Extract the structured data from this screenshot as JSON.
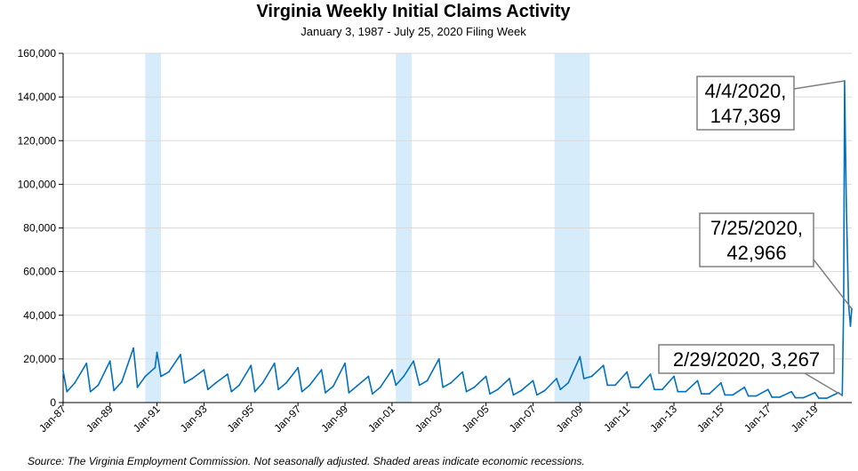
{
  "chart_data": {
    "type": "line",
    "title": "Virginia Weekly Initial Claims Activity",
    "subtitle": "January 3, 1987 - July 25, 2020 Filing Week",
    "source": "Source: The Virginia Employment Commission. Not seasonally adjusted. Shaded areas indicate economic recessions.",
    "xlabel": "",
    "ylabel": "",
    "x_range": [
      "1987-01-03",
      "2020-07-25"
    ],
    "ylim": [
      0,
      160000
    ],
    "y_ticks": [
      0,
      20000,
      40000,
      60000,
      80000,
      100000,
      120000,
      140000,
      160000
    ],
    "y_tick_labels": [
      "0",
      "20,000",
      "40,000",
      "60,000",
      "80,000",
      "100,000",
      "120,000",
      "140,000",
      "160,000"
    ],
    "x_tick_labels": [
      "Jan-87",
      "Jan-89",
      "Jan-91",
      "Jan-93",
      "Jan-95",
      "Jan-97",
      "Jan-99",
      "Jan-01",
      "Jan-03",
      "Jan-05",
      "Jan-07",
      "Jan-09",
      "Jan-11",
      "Jan-13",
      "Jan-15",
      "Jan-17",
      "Jan-19"
    ],
    "x_ticks": [
      "1987-01",
      "1989-01",
      "1991-01",
      "1993-01",
      "1995-01",
      "1997-01",
      "1999-01",
      "2001-01",
      "2003-01",
      "2005-01",
      "2007-01",
      "2009-01",
      "2011-01",
      "2013-01",
      "2015-01",
      "2017-01",
      "2019-01"
    ],
    "grid": "horizontal",
    "recessions": [
      {
        "start": "1990-07",
        "end": "1991-03"
      },
      {
        "start": "2001-03",
        "end": "2001-11"
      },
      {
        "start": "2007-12",
        "end": "2009-06"
      }
    ],
    "series": [
      {
        "x": [
          "1987-01-03",
          "1987-03",
          "1987-07",
          "1988-01",
          "1988-03",
          "1988-07",
          "1989-01",
          "1989-03",
          "1989-07",
          "1990-01",
          "1990-03",
          "1990-07",
          "1990-12",
          "1991-01",
          "1991-03",
          "1991-07",
          "1992-01",
          "1992-03",
          "1992-07",
          "1993-01",
          "1993-03",
          "1993-07",
          "1994-01",
          "1994-03",
          "1994-07",
          "1995-01",
          "1995-03",
          "1995-07",
          "1996-01",
          "1996-03",
          "1996-07",
          "1997-01",
          "1997-03",
          "1997-07",
          "1998-01",
          "1998-03",
          "1998-07",
          "1999-01",
          "1999-03",
          "1999-07",
          "2000-01",
          "2000-03",
          "2000-07",
          "2001-01",
          "2001-03",
          "2001-07",
          "2001-12",
          "2002-03",
          "2002-07",
          "2003-01",
          "2003-03",
          "2003-07",
          "2004-01",
          "2004-03",
          "2004-07",
          "2005-01",
          "2005-03",
          "2005-07",
          "2006-01",
          "2006-03",
          "2006-07",
          "2007-01",
          "2007-03",
          "2007-07",
          "2008-01",
          "2008-03",
          "2008-07",
          "2009-01",
          "2009-03",
          "2009-07",
          "2010-01",
          "2010-03",
          "2010-07",
          "2011-01",
          "2011-03",
          "2011-07",
          "2012-01",
          "2012-03",
          "2012-07",
          "2013-01",
          "2013-03",
          "2013-07",
          "2014-01",
          "2014-03",
          "2014-07",
          "2015-01",
          "2015-03",
          "2015-07",
          "2016-01",
          "2016-03",
          "2016-07",
          "2017-01",
          "2017-03",
          "2017-07",
          "2018-01",
          "2018-03",
          "2018-07",
          "2019-01",
          "2019-03",
          "2019-07",
          "2020-01",
          "2020-02-29",
          "2020-03-21",
          "2020-04-04",
          "2020-05-02",
          "2020-06-06",
          "2020-07-04",
          "2020-07-25"
        ],
        "values": [
          14500,
          5000,
          9000,
          18000,
          5000,
          8000,
          19000,
          5500,
          9500,
          25000,
          7000,
          12000,
          16000,
          23000,
          12000,
          14000,
          22000,
          9000,
          11000,
          15000,
          6000,
          9000,
          13000,
          5000,
          8000,
          17000,
          5000,
          9000,
          18000,
          6000,
          9000,
          16000,
          5000,
          8000,
          15000,
          4500,
          7500,
          18000,
          4500,
          7500,
          12000,
          4000,
          7000,
          15000,
          8000,
          12000,
          19000,
          8000,
          10000,
          20000,
          7000,
          9000,
          14000,
          5000,
          7000,
          12000,
          4000,
          6000,
          11000,
          3500,
          5500,
          10000,
          3500,
          5500,
          11000,
          6000,
          9000,
          21000,
          11000,
          12000,
          17000,
          8000,
          8000,
          14000,
          7000,
          7000,
          13000,
          6000,
          6000,
          12000,
          5000,
          5000,
          10000,
          4000,
          4000,
          9000,
          3500,
          3500,
          7000,
          3000,
          3000,
          6000,
          2500,
          2500,
          5000,
          2200,
          2200,
          4500,
          2000,
          2000,
          4500,
          3267,
          46000,
          147369,
          90000,
          45000,
          35000,
          42966
        ]
      }
    ],
    "annotations": [
      {
        "lines": [
          "4/4/2020,",
          "147,369"
        ],
        "date": "2020-04-04",
        "value": 147369
      },
      {
        "lines": [
          "7/25/2020,",
          "42,966"
        ],
        "date": "2020-07-25",
        "value": 42966
      },
      {
        "lines": [
          "2/29/2020, 3,267"
        ],
        "date": "2020-02-29",
        "value": 3267
      }
    ],
    "colors": {
      "line": "#0070c0",
      "recession": "#d6ecfa",
      "grid": "#d9d9d9",
      "axis": "#000000",
      "annotation_border": "#7f7f7f"
    }
  }
}
